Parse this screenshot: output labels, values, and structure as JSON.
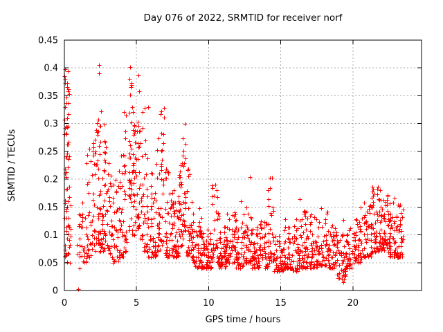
{
  "window": {
    "background": "#ffffff"
  },
  "chart_data": {
    "type": "scatter",
    "title": "Day 076 of 2022, SRMTID for receiver norf",
    "xlabel": "GPS time / hours",
    "ylabel": "SRMTID / TECUs",
    "xlim": [
      0,
      24.76
    ],
    "ylim": [
      0,
      0.45
    ],
    "xticks": {
      "values": [
        0,
        5,
        10,
        15,
        20
      ],
      "labels": [
        "0",
        "5",
        "10",
        "15",
        "20"
      ]
    },
    "yticks": {
      "values": [
        0,
        0.05,
        0.1,
        0.15,
        0.2,
        0.25,
        0.3,
        0.35,
        0.4,
        0.45
      ],
      "labels": [
        "0",
        "0.05",
        "0.1",
        "0.15",
        "0.2",
        "0.25",
        "0.3",
        "0.35",
        "0.4",
        "0.45"
      ]
    },
    "grid": true,
    "legend": "none",
    "marker": {
      "shape": "plus",
      "size": 7,
      "color": "#ff0000"
    },
    "axis_color": "#000000",
    "grid_color": "#a8a8a8",
    "seed": 2022076,
    "series_name": "SRMTID",
    "point_clusters": [
      [
        0.0,
        0.35,
        50,
        0.1,
        0.4,
        0.8
      ],
      [
        0.02,
        0.45,
        25,
        0.05,
        0.16,
        1.5
      ],
      [
        0.8,
        1.15,
        12,
        0.04,
        0.14,
        1.5
      ],
      [
        1.2,
        1.55,
        20,
        0.05,
        0.17,
        1.6
      ],
      [
        1.55,
        1.85,
        22,
        0.06,
        0.26,
        1.8
      ],
      [
        1.9,
        2.2,
        28,
        0.07,
        0.31,
        1.8
      ],
      [
        2.2,
        2.45,
        34,
        0.08,
        0.425,
        1.9
      ],
      [
        2.45,
        2.7,
        28,
        0.07,
        0.35,
        1.9
      ],
      [
        2.7,
        2.95,
        24,
        0.07,
        0.3,
        1.8
      ],
      [
        2.95,
        3.3,
        26,
        0.06,
        0.23,
        1.7
      ],
      [
        3.3,
        3.75,
        30,
        0.05,
        0.2,
        1.7
      ],
      [
        3.75,
        4.1,
        28,
        0.06,
        0.28,
        1.8
      ],
      [
        4.1,
        4.35,
        24,
        0.07,
        0.33,
        1.8
      ],
      [
        4.45,
        4.75,
        40,
        0.1,
        0.415,
        1.2
      ],
      [
        4.75,
        4.95,
        24,
        0.1,
        0.38,
        1.5
      ],
      [
        5.0,
        5.2,
        26,
        0.11,
        0.395,
        1.4
      ],
      [
        5.25,
        5.5,
        20,
        0.09,
        0.33,
        1.6
      ],
      [
        5.5,
        5.8,
        24,
        0.07,
        0.33,
        1.8
      ],
      [
        5.8,
        6.1,
        24,
        0.06,
        0.22,
        1.8
      ],
      [
        6.1,
        6.4,
        24,
        0.06,
        0.18,
        1.7
      ],
      [
        6.4,
        6.65,
        24,
        0.07,
        0.28,
        1.8
      ],
      [
        6.65,
        6.9,
        24,
        0.08,
        0.33,
        1.8
      ],
      [
        6.9,
        7.3,
        30,
        0.06,
        0.22,
        1.8
      ],
      [
        7.3,
        7.65,
        30,
        0.06,
        0.18,
        1.8
      ],
      [
        7.65,
        7.95,
        30,
        0.06,
        0.17,
        1.8
      ],
      [
        7.95,
        8.2,
        28,
        0.08,
        0.24,
        1.7
      ],
      [
        8.2,
        8.45,
        24,
        0.1,
        0.3,
        1.4
      ],
      [
        8.45,
        8.7,
        22,
        0.06,
        0.22,
        1.8
      ],
      [
        8.7,
        9.0,
        26,
        0.05,
        0.16,
        1.8
      ],
      [
        9.0,
        9.6,
        45,
        0.04,
        0.12,
        1.9
      ],
      [
        9.3,
        9.5,
        8,
        0.1,
        0.18,
        1.5
      ],
      [
        9.6,
        10.2,
        45,
        0.04,
        0.11,
        1.9
      ],
      [
        10.2,
        10.7,
        38,
        0.05,
        0.19,
        2.0
      ],
      [
        10.7,
        11.2,
        45,
        0.04,
        0.12,
        1.9
      ],
      [
        11.2,
        11.8,
        45,
        0.05,
        0.145,
        1.9
      ],
      [
        11.8,
        12.4,
        45,
        0.04,
        0.165,
        2.0
      ],
      [
        12.4,
        12.95,
        42,
        0.05,
        0.155,
        1.9
      ],
      [
        12.95,
        13.5,
        45,
        0.04,
        0.12,
        1.9
      ],
      [
        13.5,
        14.1,
        40,
        0.04,
        0.13,
        1.9
      ],
      [
        14.1,
        14.5,
        32,
        0.05,
        0.22,
        2.1
      ],
      [
        14.5,
        15.2,
        50,
        0.035,
        0.1,
        1.8
      ],
      [
        15.2,
        15.8,
        45,
        0.04,
        0.13,
        1.9
      ],
      [
        15.8,
        16.4,
        45,
        0.035,
        0.17,
        2.0
      ],
      [
        16.4,
        17.0,
        45,
        0.04,
        0.145,
        1.9
      ],
      [
        17.0,
        17.6,
        45,
        0.04,
        0.14,
        1.9
      ],
      [
        17.6,
        18.3,
        50,
        0.045,
        0.15,
        1.9
      ],
      [
        18.3,
        18.9,
        45,
        0.04,
        0.12,
        1.9
      ],
      [
        18.9,
        19.5,
        40,
        0.02,
        0.13,
        1.9
      ],
      [
        19.5,
        20.1,
        40,
        0.04,
        0.12,
        1.9
      ],
      [
        20.1,
        20.7,
        42,
        0.05,
        0.155,
        1.9
      ],
      [
        20.7,
        21.3,
        46,
        0.06,
        0.16,
        1.8
      ],
      [
        21.3,
        21.9,
        52,
        0.07,
        0.19,
        1.7
      ],
      [
        21.9,
        22.5,
        52,
        0.07,
        0.175,
        1.7
      ],
      [
        22.5,
        23.0,
        46,
        0.06,
        0.17,
        1.8
      ],
      [
        23.0,
        23.45,
        40,
        0.06,
        0.155,
        1.7
      ]
    ],
    "extra_points": [
      [
        0.97,
        0.002
      ],
      [
        12.86,
        0.204
      ],
      [
        19.35,
        0.015
      ]
    ]
  }
}
